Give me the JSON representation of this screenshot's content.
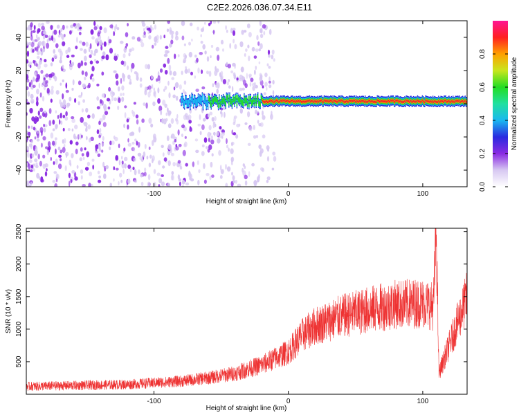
{
  "title": "C2E2.2026.036.07.34.E11",
  "colors": {
    "snr_line": "#ee3333",
    "colormap": [
      "#ffffff",
      "#d7c8f2",
      "#8a2be2",
      "#2a2ae0",
      "#1ab8f0",
      "#20e0a0",
      "#22dd22",
      "#c8e61e",
      "#ffa000",
      "#ff2020",
      "#ff1493"
    ]
  },
  "chart_data": [
    {
      "type": "heatmap",
      "xlabel": "Height of straight line (km)",
      "ylabel": "Frequency (Hz)",
      "xlim": [
        -195,
        133
      ],
      "ylim": [
        -50,
        50
      ],
      "xticks": [
        -100,
        0,
        100
      ],
      "yticks": [
        -40,
        -20,
        0,
        20,
        40
      ],
      "colorbar": {
        "label": "Normalized spectral amplitude",
        "range": [
          0,
          1
        ],
        "ticks": [
          "0.0",
          "0.2",
          "0.4",
          "0.6",
          "0.8"
        ]
      },
      "features": {
        "noise_region_x": [
          -195,
          -20
        ],
        "signal_band_center_hz": 1.5,
        "signal_band_halfwidth_hz": 2,
        "signal_start_x": -80
      }
    },
    {
      "type": "line",
      "xlabel": "Height of straight line (km)",
      "ylabel": "SNR (10 * v/v)",
      "xlim": [
        -195,
        133
      ],
      "ylim": [
        0,
        2550
      ],
      "xticks": [
        -100,
        0,
        100
      ],
      "yticks": [
        500,
        1000,
        1500,
        2000,
        2500
      ],
      "series": [
        {
          "envelope_x": [
            -195,
            -120,
            -80,
            -60,
            -40,
            -20,
            0,
            10,
            20,
            40,
            60,
            80,
            100,
            108,
            110,
            112,
            133
          ],
          "envelope_y": [
            120,
            150,
            200,
            250,
            320,
            450,
            650,
            900,
            1050,
            1200,
            1300,
            1380,
            1400,
            1350,
            2580,
            320,
            1500
          ]
        }
      ]
    }
  ]
}
